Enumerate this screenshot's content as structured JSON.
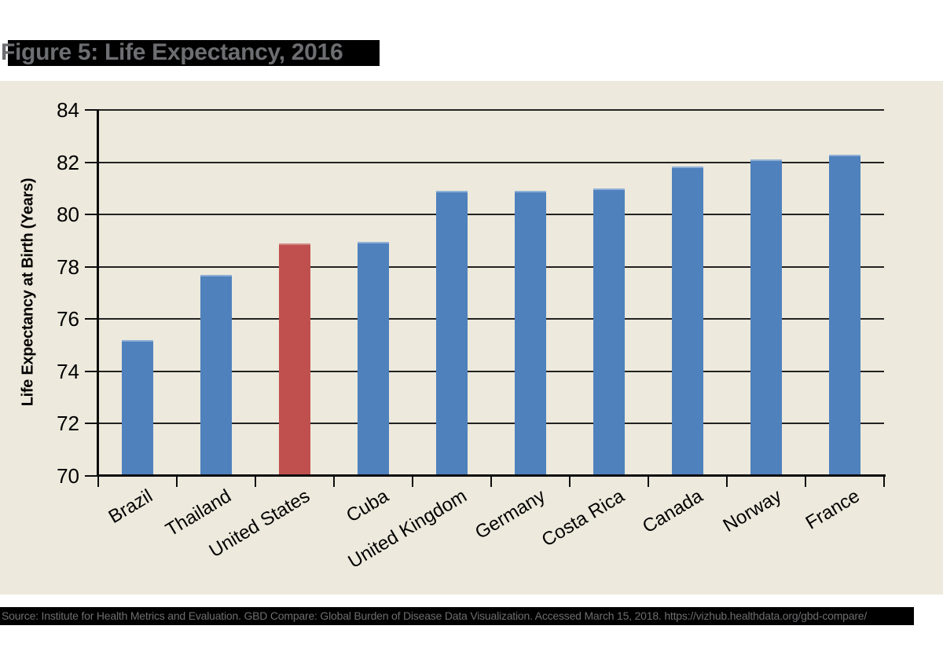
{
  "title": "Figure 5: Life Expectancy, 2016",
  "source": "Source: Institute for Health Metrics and Evaluation. GBD Compare: Global Burden of Disease Data Visualization. Accessed March 15, 2018. https://vizhub.healthdata.org/gbd-compare/",
  "colors": {
    "bar": "#4F81BD",
    "bar_top_edge": "#8FAFD6",
    "highlight_bar": "#C0504D",
    "highlight_bar_top_edge": "#D08683",
    "panel_background": "#EDE9DC",
    "page_background": "#FFFFFF",
    "highlight_band_background": "#000000",
    "muted_text": "#6D6E71",
    "axis": "#0D0D0D",
    "gridline": "#222222",
    "label_text": "#000000"
  },
  "chart_data": {
    "type": "bar",
    "title": "Figure 5: Life Expectancy, 2016",
    "categories": [
      "Brazil",
      "Thailand",
      "United States",
      "Cuba",
      "United Kingdom",
      "Germany",
      "Costa Rica",
      "Canada",
      "Norway",
      "France"
    ],
    "values": [
      75.2,
      77.7,
      78.9,
      78.95,
      80.9,
      80.9,
      81.0,
      81.85,
      82.1,
      82.3
    ],
    "highlighted_category": "United States",
    "highlight_index": 2,
    "xlabel": "",
    "ylabel": "Life Expectancy at Birth (Years)",
    "ylim": [
      70,
      84
    ],
    "y_ticks": [
      70,
      72,
      74,
      76,
      78,
      80,
      82,
      84
    ],
    "grid": "horizontal",
    "legend": "none"
  }
}
